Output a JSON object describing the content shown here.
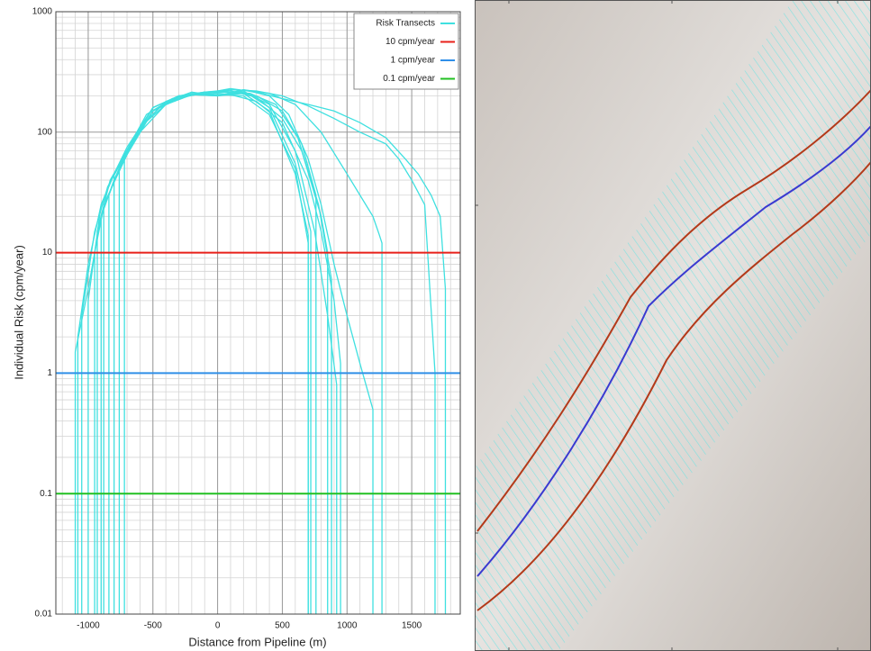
{
  "chart_data": {
    "type": "line",
    "ylabel": "Individual Risk (cpm/year)",
    "xlabel": "Distance from Pipeline (m)",
    "xlim": [
      -1250,
      1875
    ],
    "ylim": [
      0.01,
      1000
    ],
    "xticks": [
      -1000,
      -500,
      0,
      500,
      1000,
      1500
    ],
    "yticks": [
      0.01,
      0.1,
      1,
      10,
      100,
      1000
    ],
    "log_y": true,
    "grid": true,
    "legend": "upper right",
    "series": [
      {
        "name": "Risk Transects",
        "color": "#3fe0e0",
        "transects": [
          {
            "x": [
              -1080,
              -1080,
              -1000,
              -900,
              -800,
              -700,
              -500,
              -300,
              -100,
              0,
              100,
              300,
              500,
              700,
              800,
              900,
              950,
              950
            ],
            "values": [
              0.01,
              2,
              8,
              25,
              45,
              70,
              150,
              190,
              215,
              210,
              205,
              180,
              120,
              40,
              15,
              4,
              1.2,
              0.01
            ]
          },
          {
            "x": [
              -1050,
              -1050,
              -950,
              -850,
              -750,
              -600,
              -400,
              -200,
              0,
              200,
              400,
              600,
              750,
              850,
              920,
              920
            ],
            "values": [
              0.01,
              3,
              15,
              35,
              55,
              110,
              170,
              205,
              200,
              215,
              170,
              70,
              15,
              3,
              0.8,
              0.01
            ]
          },
          {
            "x": [
              -900,
              -900,
              -800,
              -700,
              -500,
              -300,
              -100,
              0,
              200,
              400,
              600,
              700,
              700
            ],
            "values": [
              0.01,
              20,
              40,
              70,
              160,
              200,
              210,
              205,
              200,
              140,
              50,
              12,
              0.01
            ]
          },
          {
            "x": [
              -880,
              -880,
              -750,
              -600,
              -400,
              -200,
              0,
              200,
              400,
              600,
              720,
              720
            ],
            "values": [
              0.01,
              25,
              50,
              110,
              180,
              210,
              200,
              220,
              160,
              55,
              15,
              0.01
            ]
          },
          {
            "x": [
              -720,
              -720,
              -600,
              -400,
              -200,
              0,
              200,
              400,
              550,
              700,
              800,
              900,
              1000,
              1100,
              1200,
              1200
            ],
            "values": [
              0.01,
              60,
              100,
              170,
              205,
              200,
              225,
              200,
              140,
              60,
              25,
              8,
              3,
              1.2,
              0.5,
              0.01
            ]
          },
          {
            "x": [
              -1000,
              -1000,
              -900,
              -800,
              -600,
              -400,
              -200,
              0,
              200,
              400,
              600,
              800,
              1000,
              1100,
              1200,
              1250,
              1270,
              1270
            ],
            "values": [
              0.01,
              4,
              25,
              45,
              110,
              180,
              215,
              200,
              225,
              210,
              170,
              100,
              45,
              30,
              20,
              14,
              12,
              0.01
            ]
          },
          {
            "x": [
              -950,
              -950,
              -850,
              -700,
              -500,
              -300,
              -100,
              100,
              300,
              500,
              700,
              900,
              1100,
              1300,
              1400,
              1500,
              1600,
              1680,
              1680
            ],
            "values": [
              0.01,
              10,
              35,
              75,
              160,
              200,
              215,
              225,
              220,
              200,
              165,
              130,
              100,
              80,
              60,
              40,
              25,
              1,
              0.01
            ]
          },
          {
            "x": [
              -800,
              -800,
              -700,
              -500,
              -300,
              -100,
              100,
              300,
              500,
              700,
              900,
              1100,
              1300,
              1450,
              1550,
              1650,
              1720,
              1760,
              1760
            ],
            "values": [
              0.01,
              45,
              70,
              160,
              200,
              210,
              230,
              215,
              190,
              170,
              150,
              120,
              90,
              60,
              45,
              30,
              20,
              5,
              0.01
            ]
          },
          {
            "x": [
              -1100,
              -1100,
              -1000,
              -900,
              -800,
              -700,
              -500,
              -300,
              -100,
              0,
              200,
              400,
              600,
              700,
              700
            ],
            "values": [
              0.01,
              1.5,
              5,
              20,
              40,
              65,
              150,
              195,
              210,
              200,
              210,
              150,
              45,
              14,
              0.01
            ]
          },
          {
            "x": [
              -930,
              -930,
              -830,
              -700,
              -500,
              -300,
              -100,
              100,
              300,
              500,
              650,
              800,
              850,
              850
            ],
            "values": [
              0.01,
              15,
              40,
              70,
              150,
              200,
              215,
              220,
              195,
              130,
              70,
              20,
              10,
              0.01
            ]
          },
          {
            "x": [
              -760,
              -760,
              -650,
              -500,
              -300,
              -100,
              100,
              300,
              500,
              650,
              760,
              760
            ],
            "values": [
              0.01,
              50,
              85,
              150,
              195,
              210,
              220,
              200,
              150,
              80,
              30,
              0.01
            ]
          },
          {
            "x": [
              -840,
              -840,
              -720,
              -550,
              -350,
              -150,
              50,
              250,
              450,
              620,
              780,
              880,
              880
            ],
            "values": [
              0.01,
              30,
              65,
              140,
              190,
              210,
              215,
              210,
              170,
              90,
              25,
              6,
              0.01
            ]
          }
        ]
      },
      {
        "name": "10 cpm/year",
        "color": "#e8201a",
        "value": 10
      },
      {
        "name": "1 cpm/year",
        "color": "#2f8fe8",
        "value": 1
      },
      {
        "name": "0.1 cpm/year",
        "color": "#22c022",
        "value": 0.1
      }
    ]
  }
}
